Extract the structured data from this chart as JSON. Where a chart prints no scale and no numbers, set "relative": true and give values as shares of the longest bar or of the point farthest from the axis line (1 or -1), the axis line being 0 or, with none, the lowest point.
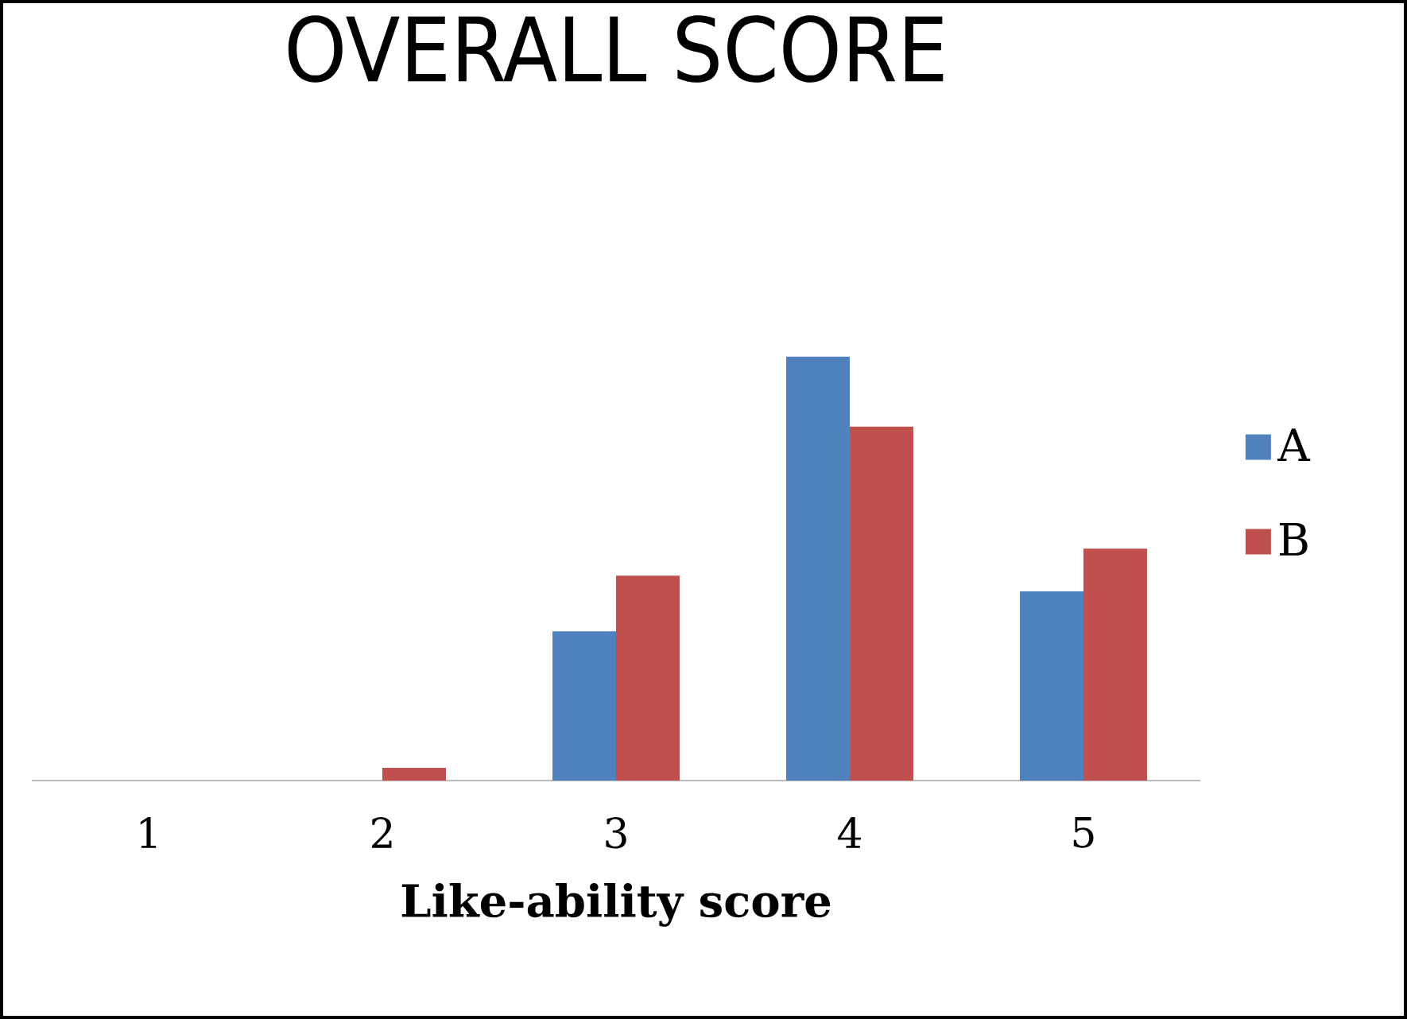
{
  "chart_data": {
    "type": "bar",
    "title": "OVERALL SCORE",
    "xlabel": "Like-ability score",
    "categories": [
      "1",
      "2",
      "3",
      "4",
      "5"
    ],
    "relative": true,
    "series": [
      {
        "name": "A",
        "color": "#4f81bd",
        "values": [
          0,
          0,
          0.352,
          1,
          0.446
        ]
      },
      {
        "name": "B",
        "color": "#c0504d",
        "values": [
          0,
          0.03,
          0.483,
          0.835,
          0.547
        ]
      }
    ],
    "legend": "right"
  }
}
